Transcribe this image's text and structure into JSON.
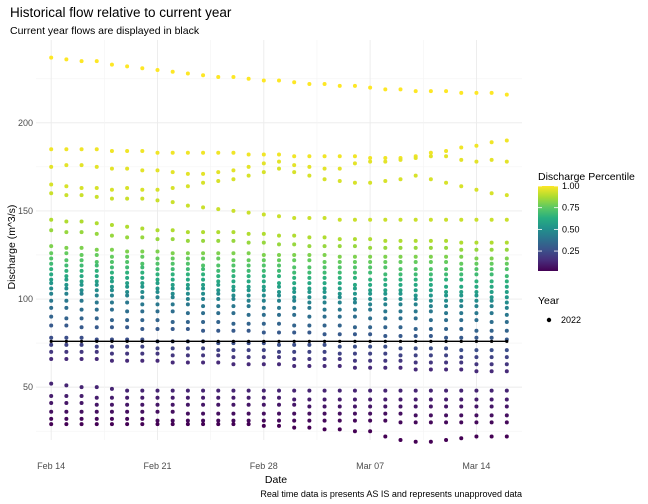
{
  "chart_data": {
    "type": "scatter",
    "title": "Historical flow relative to current year",
    "subtitle": "Current year flows are displayed in black",
    "xlabel": "Date",
    "ylabel": "Discharge (m^3/s)",
    "caption": "Real time data is presents AS IS and represents unapproved data",
    "x_start": "Feb 13",
    "x_end": "Mar 17",
    "x_ticks": [
      {
        "label": "Feb 14",
        "day": 1
      },
      {
        "label": "Feb 21",
        "day": 8
      },
      {
        "label": "Feb 28",
        "day": 15
      },
      {
        "label": "Mar 07",
        "day": 22
      },
      {
        "label": "Mar 14",
        "day": 29
      }
    ],
    "ylim": [
      20,
      247
    ],
    "y_ticks": [
      50,
      100,
      150,
      200
    ],
    "grid": true,
    "dates": [
      "Feb 14",
      "Feb 15",
      "Feb 16",
      "Feb 17",
      "Feb 18",
      "Feb 19",
      "Feb 20",
      "Feb 21",
      "Feb 22",
      "Feb 23",
      "Feb 24",
      "Feb 25",
      "Feb 26",
      "Feb 27",
      "Feb 28",
      "Mar 01",
      "Mar 02",
      "Mar 03",
      "Mar 04",
      "Mar 05",
      "Mar 06",
      "Mar 07",
      "Mar 08",
      "Mar 09",
      "Mar 10",
      "Mar 11",
      "Mar 12",
      "Mar 13",
      "Mar 14",
      "Mar 15",
      "Mar 16"
    ],
    "historical_series": [
      {
        "percentile": 1.0,
        "values": [
          237,
          236,
          235,
          235,
          233,
          232,
          231,
          230,
          229,
          228,
          227,
          226,
          226,
          225,
          224,
          224,
          223,
          222,
          222,
          221,
          221,
          220,
          219,
          219,
          218,
          218,
          218,
          217,
          217,
          217,
          216
        ]
      },
      {
        "percentile": 0.98,
        "values": [
          185,
          185,
          185,
          185,
          184,
          184,
          184,
          183,
          183,
          183,
          183,
          183,
          183,
          182,
          182,
          182,
          181,
          181,
          181,
          181,
          181,
          180,
          180,
          180,
          181,
          183,
          184,
          186,
          187,
          189,
          190
        ]
      },
      {
        "percentile": 0.96,
        "values": [
          175,
          176,
          176,
          175,
          174,
          174,
          173,
          173,
          172,
          171,
          171,
          172,
          173,
          175,
          177,
          178,
          176,
          175,
          174,
          174,
          177,
          178,
          178,
          179,
          180,
          181,
          181,
          179,
          178,
          179,
          178
        ]
      },
      {
        "percentile": 0.94,
        "values": [
          165,
          164,
          163,
          163,
          162,
          163,
          162,
          162,
          163,
          164,
          166,
          167,
          168,
          170,
          172,
          174,
          172,
          170,
          168,
          167,
          166,
          166,
          167,
          168,
          170,
          168,
          166,
          164,
          162,
          160,
          159
        ]
      },
      {
        "percentile": 0.92,
        "values": [
          160,
          159,
          159,
          158,
          157,
          157,
          157,
          156,
          155,
          153,
          152,
          151,
          150,
          149,
          148,
          147,
          146,
          146,
          146,
          145,
          145,
          145,
          145,
          145,
          145,
          145,
          145,
          145,
          145,
          145,
          145
        ]
      },
      {
        "percentile": 0.88,
        "values": [
          145,
          144,
          144,
          143,
          142,
          141,
          140,
          139,
          139,
          138,
          138,
          138,
          138,
          137,
          137,
          136,
          136,
          135,
          135,
          134,
          134,
          134,
          133,
          133,
          133,
          133,
          133,
          132,
          132,
          132,
          132
        ]
      },
      {
        "percentile": 0.84,
        "values": [
          139,
          138,
          138,
          137,
          136,
          135,
          135,
          134,
          134,
          133,
          133,
          133,
          133,
          132,
          132,
          131,
          131,
          130,
          130,
          130,
          130,
          129,
          129,
          129,
          129,
          129,
          129,
          128,
          128,
          128,
          128
        ]
      },
      {
        "percentile": 0.8,
        "values": [
          130,
          129,
          129,
          128,
          128,
          127,
          127,
          127,
          126,
          126,
          126,
          126,
          126,
          126,
          125,
          125,
          125,
          125,
          125,
          124,
          124,
          124,
          124,
          124,
          124,
          124,
          124,
          124,
          123,
          123,
          123
        ]
      },
      {
        "percentile": 0.76,
        "values": [
          126,
          126,
          125,
          125,
          124,
          124,
          124,
          123,
          123,
          123,
          123,
          123,
          122,
          122,
          122,
          122,
          122,
          122,
          121,
          121,
          121,
          121,
          121,
          121,
          121,
          121,
          121,
          120,
          120,
          120,
          120
        ]
      },
      {
        "percentile": 0.72,
        "values": [
          123,
          122,
          122,
          121,
          121,
          121,
          120,
          120,
          120,
          120,
          119,
          119,
          119,
          119,
          119,
          119,
          118,
          118,
          118,
          118,
          118,
          118,
          118,
          117,
          117,
          117,
          117,
          117,
          117,
          117,
          117
        ]
      },
      {
        "percentile": 0.68,
        "values": [
          120,
          119,
          119,
          119,
          118,
          118,
          118,
          117,
          117,
          117,
          117,
          116,
          116,
          116,
          116,
          116,
          115,
          115,
          115,
          115,
          115,
          115,
          114,
          114,
          114,
          114,
          114,
          114,
          114,
          114,
          113
        ]
      },
      {
        "percentile": 0.64,
        "values": [
          117,
          116,
          116,
          116,
          115,
          115,
          115,
          114,
          114,
          114,
          114,
          113,
          113,
          113,
          113,
          113,
          112,
          112,
          112,
          112,
          112,
          111,
          111,
          111,
          111,
          111,
          111,
          111,
          110,
          110,
          110
        ]
      },
      {
        "percentile": 0.6,
        "values": [
          114,
          113,
          113,
          113,
          112,
          112,
          112,
          111,
          111,
          111,
          111,
          110,
          110,
          110,
          110,
          109,
          109,
          109,
          109,
          109,
          108,
          108,
          108,
          108,
          108,
          108,
          107,
          107,
          107,
          107,
          107
        ]
      },
      {
        "percentile": 0.56,
        "values": [
          111,
          111,
          110,
          110,
          110,
          109,
          109,
          109,
          108,
          108,
          108,
          108,
          107,
          107,
          107,
          107,
          106,
          106,
          106,
          106,
          106,
          105,
          105,
          105,
          105,
          105,
          104,
          104,
          104,
          104,
          104
        ]
      },
      {
        "percentile": 0.52,
        "values": [
          109,
          108,
          108,
          108,
          107,
          107,
          107,
          106,
          106,
          106,
          106,
          105,
          105,
          105,
          105,
          104,
          104,
          104,
          104,
          103,
          103,
          103,
          103,
          103,
          102,
          102,
          102,
          102,
          102,
          101,
          101
        ]
      },
      {
        "percentile": 0.48,
        "values": [
          106,
          106,
          105,
          105,
          105,
          104,
          104,
          104,
          103,
          103,
          103,
          103,
          102,
          102,
          102,
          102,
          101,
          101,
          101,
          101,
          100,
          100,
          100,
          100,
          100,
          99,
          99,
          99,
          99,
          99,
          98
        ]
      },
      {
        "percentile": 0.44,
        "values": [
          103,
          103,
          103,
          102,
          102,
          102,
          101,
          101,
          101,
          100,
          100,
          100,
          100,
          99,
          99,
          99,
          99,
          98,
          98,
          98,
          98,
          97,
          97,
          97,
          97,
          96,
          96,
          96,
          96,
          96,
          95
        ]
      },
      {
        "percentile": 0.4,
        "values": [
          99,
          99,
          99,
          98,
          98,
          98,
          97,
          97,
          97,
          97,
          96,
          96,
          96,
          96,
          95,
          95,
          95,
          95,
          94,
          94,
          94,
          94,
          93,
          93,
          93,
          93,
          92,
          92,
          92,
          92,
          91
        ]
      },
      {
        "percentile": 0.36,
        "values": [
          95,
          95,
          94,
          94,
          94,
          93,
          93,
          93,
          93,
          92,
          92,
          92,
          92,
          91,
          91,
          91,
          91,
          90,
          90,
          90,
          90,
          89,
          89,
          89,
          89,
          88,
          88,
          88,
          88,
          87,
          87
        ]
      },
      {
        "percentile": 0.32,
        "values": [
          90,
          89,
          89,
          89,
          88,
          88,
          88,
          88,
          87,
          87,
          87,
          87,
          86,
          86,
          86,
          86,
          85,
          85,
          85,
          85,
          84,
          84,
          84,
          84,
          83,
          83,
          83,
          83,
          82,
          82,
          82
        ]
      },
      {
        "percentile": 0.28,
        "values": [
          85,
          85,
          84,
          84,
          84,
          84,
          83,
          83,
          83,
          83,
          82,
          82,
          82,
          82,
          81,
          81,
          81,
          81,
          80,
          80,
          80,
          80,
          79,
          79,
          79,
          79,
          78,
          78,
          78,
          78,
          77
        ]
      },
      {
        "percentile": 0.24,
        "values": [
          78,
          78,
          78,
          77,
          77,
          77,
          77,
          76,
          76,
          76,
          76,
          75,
          75,
          75,
          75,
          74,
          74,
          74,
          74,
          73,
          73,
          73,
          73,
          72,
          72,
          72,
          72,
          71,
          71,
          71,
          71
        ]
      },
      {
        "percentile": 0.2,
        "values": [
          74,
          74,
          74,
          73,
          73,
          73,
          73,
          72,
          72,
          72,
          72,
          71,
          71,
          71,
          71,
          70,
          70,
          70,
          70,
          69,
          69,
          69,
          69,
          68,
          68,
          68,
          68,
          67,
          67,
          67,
          67
        ]
      },
      {
        "percentile": 0.16,
        "values": [
          70,
          70,
          70,
          70,
          69,
          69,
          69,
          69,
          68,
          68,
          68,
          68,
          67,
          67,
          67,
          67,
          66,
          66,
          66,
          66,
          65,
          65,
          65,
          65,
          64,
          64,
          64,
          64,
          63,
          63,
          63
        ]
      },
      {
        "percentile": 0.12,
        "values": [
          66,
          66,
          66,
          66,
          65,
          65,
          65,
          65,
          64,
          64,
          64,
          64,
          63,
          63,
          63,
          63,
          62,
          62,
          62,
          62,
          61,
          61,
          61,
          61,
          60,
          60,
          60,
          60,
          59,
          59,
          59
        ]
      },
      {
        "percentile": 0.1,
        "values": [
          52,
          51,
          50,
          50,
          49,
          48,
          48,
          48,
          48,
          48,
          48,
          48,
          48,
          48,
          48,
          48,
          48,
          48,
          48,
          48,
          48,
          48,
          48,
          48,
          48,
          48,
          48,
          48,
          48,
          48,
          48
        ]
      },
      {
        "percentile": 0.08,
        "values": [
          45,
          45,
          45,
          44,
          44,
          44,
          44,
          44,
          44,
          44,
          44,
          44,
          44,
          44,
          44,
          44,
          43,
          43,
          43,
          43,
          43,
          43,
          43,
          43,
          43,
          43,
          43,
          43,
          43,
          43,
          43
        ]
      },
      {
        "percentile": 0.06,
        "values": [
          41,
          41,
          41,
          40,
          40,
          40,
          40,
          40,
          40,
          40,
          40,
          40,
          40,
          40,
          40,
          40,
          40,
          39,
          39,
          39,
          39,
          39,
          39,
          39,
          39,
          39,
          39,
          39,
          39,
          39,
          39
        ]
      },
      {
        "percentile": 0.04,
        "values": [
          36,
          36,
          36,
          36,
          36,
          36,
          36,
          36,
          36,
          35,
          35,
          35,
          35,
          35,
          35,
          35,
          35,
          35,
          35,
          35,
          35,
          35,
          35,
          35,
          34,
          34,
          34,
          34,
          34,
          34,
          34
        ]
      },
      {
        "percentile": 0.02,
        "values": [
          32,
          32,
          32,
          32,
          32,
          32,
          32,
          31,
          31,
          31,
          31,
          31,
          31,
          31,
          31,
          31,
          31,
          31,
          31,
          31,
          31,
          31,
          31,
          30,
          30,
          30,
          30,
          30,
          30,
          30,
          30
        ]
      },
      {
        "percentile": 0.0,
        "values": [
          29,
          29,
          29,
          29,
          29,
          29,
          29,
          29,
          29,
          29,
          29,
          29,
          29,
          29,
          28,
          28,
          27,
          27,
          26,
          26,
          25,
          25,
          22,
          20,
          19,
          19,
          20,
          21,
          22,
          22,
          22
        ]
      }
    ],
    "current_year": {
      "name": "2022",
      "values": [
        76,
        76,
        76,
        76,
        76,
        76,
        76,
        76,
        76,
        76,
        76,
        76,
        76,
        76,
        76,
        76,
        76,
        76,
        76,
        76,
        76,
        76,
        76,
        76,
        76,
        76,
        76,
        76,
        76,
        76,
        76
      ]
    },
    "colorbar": {
      "title": "Discharge Percentile",
      "ticks": [
        0.25,
        0.5,
        0.75,
        1.0
      ],
      "tick_labels": [
        "0.25",
        "0.50",
        "0.75",
        "1.00"
      ],
      "stops": [
        "#440154",
        "#472d7b",
        "#3b528b",
        "#2c728e",
        "#21918c",
        "#28ae80",
        "#5ec962",
        "#addc30",
        "#fde725"
      ]
    },
    "legend": {
      "title": "Year",
      "entries": [
        "2022"
      ],
      "placement": "right"
    }
  }
}
